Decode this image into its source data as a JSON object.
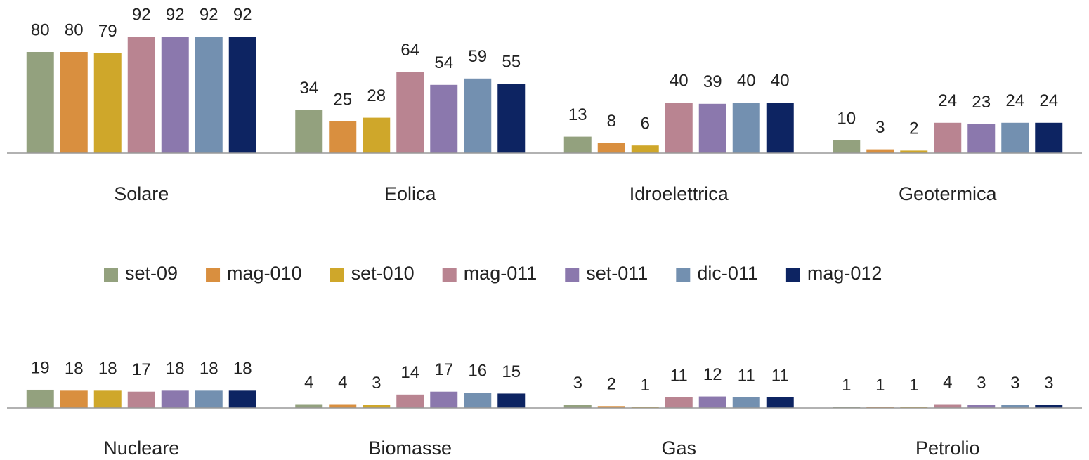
{
  "chart_data": [
    {
      "type": "bar",
      "categories": [
        "Solare",
        "Eolica",
        "Idroelettrica",
        "Geotermica"
      ],
      "ylim": [
        0,
        100
      ],
      "series": [
        {
          "name": "set-09",
          "color": "#93a17e",
          "values": [
            80,
            34,
            13,
            10
          ]
        },
        {
          "name": "mag-010",
          "color": "#d98f3f",
          "values": [
            80,
            25,
            8,
            3
          ]
        },
        {
          "name": "set-010",
          "color": "#cfa72a",
          "values": [
            79,
            28,
            6,
            2
          ]
        },
        {
          "name": "mag-011",
          "color": "#b98491",
          "values": [
            92,
            64,
            40,
            24
          ]
        },
        {
          "name": "set-011",
          "color": "#8b78ad",
          "values": [
            92,
            54,
            39,
            23
          ]
        },
        {
          "name": "dic-011",
          "color": "#7390b0",
          "values": [
            92,
            59,
            40,
            24
          ]
        },
        {
          "name": "mag-012",
          "color": "#0d2462",
          "values": [
            92,
            55,
            40,
            24
          ]
        }
      ]
    },
    {
      "type": "bar",
      "categories": [
        "Nucleare",
        "Biomasse",
        "Gas",
        "Petrolio"
      ],
      "ylim": [
        0,
        100
      ],
      "series": [
        {
          "color": "#93a17e",
          "values": [
            19,
            4,
            3,
            1
          ]
        },
        {
          "color": "#d98f3f",
          "values": [
            18,
            4,
            2,
            1
          ]
        },
        {
          "color": "#cfa72a",
          "values": [
            18,
            3,
            1,
            1
          ]
        },
        {
          "color": "#b98491",
          "values": [
            17,
            14,
            11,
            4
          ]
        },
        {
          "color": "#8b78ad",
          "values": [
            18,
            17,
            12,
            3
          ]
        },
        {
          "color": "#7390b0",
          "values": [
            18,
            16,
            11,
            3
          ]
        },
        {
          "color": "#0d2462",
          "values": [
            18,
            15,
            11,
            3
          ]
        }
      ]
    }
  ]
}
